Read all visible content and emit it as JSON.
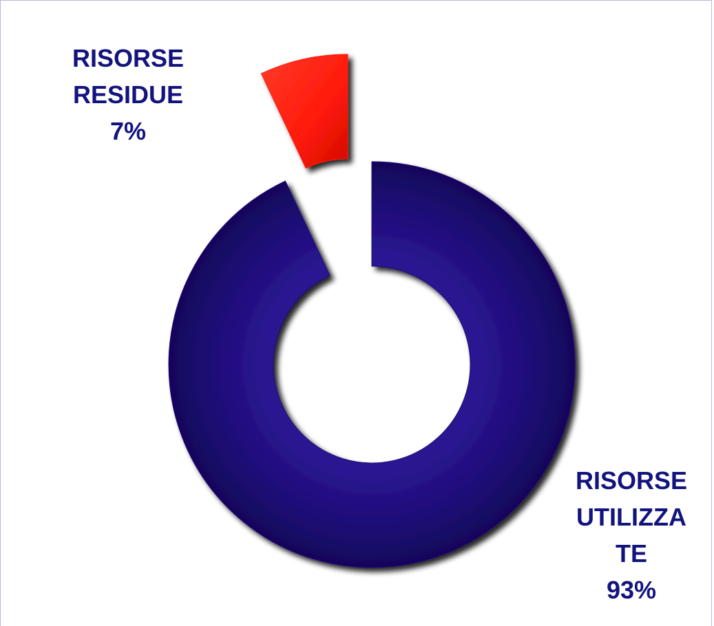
{
  "chart_data": {
    "type": "pie",
    "variant": "doughnut",
    "slices": [
      {
        "label_lines": [
          "RISORSE",
          "UTILIZZA",
          "TE",
          "93%"
        ],
        "value": 93,
        "color": "#1e0a78",
        "exploded": false
      },
      {
        "label_lines": [
          "RISORSE",
          "RESIDUE",
          "7%"
        ],
        "value": 7,
        "color": "#ff1a0a",
        "exploded": true
      }
    ],
    "legend": "none"
  }
}
